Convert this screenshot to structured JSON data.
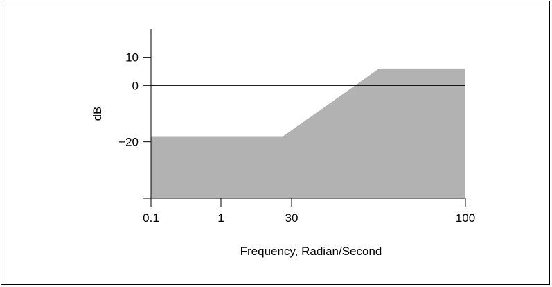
{
  "chart_data": {
    "type": "area",
    "x_scale": "log",
    "xlabel": "Frequency, Radian/Second",
    "ylabel": "dB",
    "x_ticks": [
      {
        "value": 0.1,
        "label": "0.1"
      },
      {
        "value": 1,
        "label": "1"
      },
      {
        "value": 30,
        "label": "30"
      },
      {
        "value": 100,
        "label": "100"
      }
    ],
    "y_ticks": [
      {
        "value": 10,
        "label": "10"
      },
      {
        "value": 0,
        "label": "0"
      },
      {
        "value": -20,
        "label": "−20"
      }
    ],
    "ylim": [
      -40,
      20
    ],
    "baseline": -40,
    "series": [
      {
        "x": [
          0.1,
          20,
          55,
          100
        ],
        "y": [
          -18,
          -18,
          6,
          6
        ]
      }
    ],
    "reference_line_y": 0,
    "grid": false,
    "colors": {
      "fill": "#b2b2b2",
      "axis": "#000000"
    }
  }
}
